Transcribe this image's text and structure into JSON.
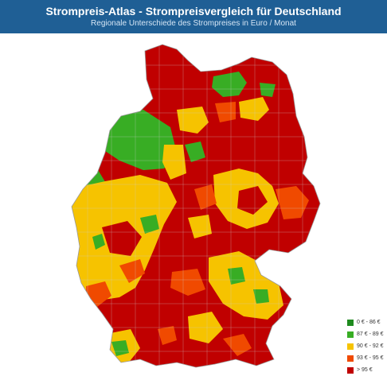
{
  "header": {
    "title": "Strompreis-Atlas - Strompreisvergleich für Deutschland",
    "subtitle": "Regionale Unterschiede des Strompreises in Euro / Monat",
    "background": "#1f5f95"
  },
  "legend": {
    "items": [
      {
        "label": "0 € - 86 €",
        "color": "#1e8a1e"
      },
      {
        "label": "87 € - 89 €",
        "color": "#38ad24"
      },
      {
        "label": "90 € - 92 €",
        "color": "#f6c300"
      },
      {
        "label": "93 € - 95 €",
        "color": "#f04a00"
      },
      {
        "label": "> 95 €",
        "color": "#c00000"
      }
    ]
  },
  "map": {
    "region": "Germany",
    "border_color": "#cfcfcf"
  }
}
